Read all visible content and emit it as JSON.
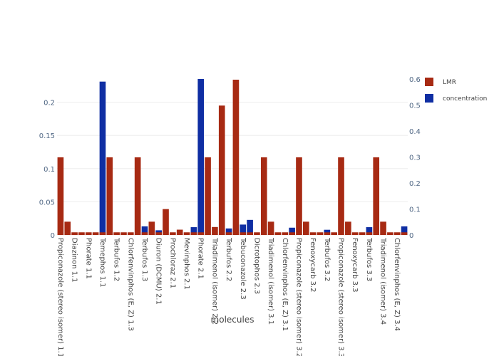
{
  "chart_data": {
    "type": "bar",
    "xlabel": "molecules",
    "categories": [
      "Propiconazole (stereo isomer) 1.1",
      "",
      "Diazinon 1.1",
      "",
      "Phorate 1.1",
      "",
      "Temephos 1.1",
      "",
      "Terbufos 1.2",
      "",
      "Chlorfenvinphos (E, Z) 1.3",
      "",
      "Terbufos 1.3",
      "",
      "Diuron (DCMU) 2.1",
      "",
      "Prochloraz 2.1",
      "",
      "Mevinphos 2.1",
      "",
      "Phorate 2.1",
      "",
      "Triadimenol (isomer) 2.2",
      "",
      "Terbufos 2.2",
      "",
      "Tebuconazole 2.3",
      "",
      "Dicrotophos 2.3",
      "",
      "Triadimenol (isomer) 3.1",
      "",
      "Chlorfenvinphos (E, Z) 3.1",
      "",
      "Propiconazole (stereo isomer) 3.2",
      "",
      "Fenoxycarb 3.2",
      "",
      "Terbufos 3.2",
      "",
      "Propiconazole (stereo isomer) 3.3",
      "",
      "Fenoxycarb 3.3",
      "",
      "Terbufos 3.3",
      "",
      "Triadimenol (isomer) 3.4",
      "",
      "Chlorfenvinphos (E, Z) 3.4",
      ""
    ],
    "y_left": {
      "ticks": [
        "0",
        "0.05",
        "0.1",
        "0.15",
        "0.2"
      ],
      "range": [
        0,
        0.235
      ]
    },
    "y_right": {
      "ticks": [
        "0",
        "0.1",
        "0.2",
        "0.3",
        "0.4",
        "0.5",
        "0.6"
      ],
      "range": [
        0,
        0.6
      ]
    },
    "series": [
      {
        "name": "LMR",
        "axis": "left",
        "color": "#a72a13",
        "values": [
          0.117,
          0.02,
          0.004,
          0.004,
          0.004,
          0.004,
          0.004,
          0.117,
          0.004,
          0.004,
          0.004,
          0.117,
          0.004,
          0.02,
          0.004,
          0.039,
          0.004,
          0.008,
          0.004,
          0.004,
          0.004,
          0.117,
          0.012,
          0.195,
          0.004,
          0.234,
          0.004,
          0.004,
          0.004,
          0.117,
          0.02,
          0.004,
          0.004,
          0.004,
          0.117,
          0.02,
          0.004,
          0.004,
          0.004,
          0.004,
          0.117,
          0.02,
          0.004,
          0.004,
          0.004,
          0.117,
          0.02,
          0.004,
          0.004,
          0.004
        ]
      },
      {
        "name": "concentration",
        "axis": "right",
        "color": "#0f2ea3",
        "values": [
          0,
          0,
          0,
          0,
          0,
          0,
          0.59,
          0,
          0,
          0,
          0,
          0,
          0.033,
          0,
          0.018,
          0,
          0,
          0,
          0,
          0.03,
          0.6,
          0,
          0,
          0,
          0.025,
          0,
          0.04,
          0.058,
          0,
          0,
          0,
          0,
          0,
          0.028,
          0,
          0,
          0,
          0,
          0.02,
          0,
          0,
          0,
          0,
          0,
          0.03,
          0,
          0,
          0,
          0,
          0.033
        ]
      }
    ],
    "legend": "top-right"
  }
}
